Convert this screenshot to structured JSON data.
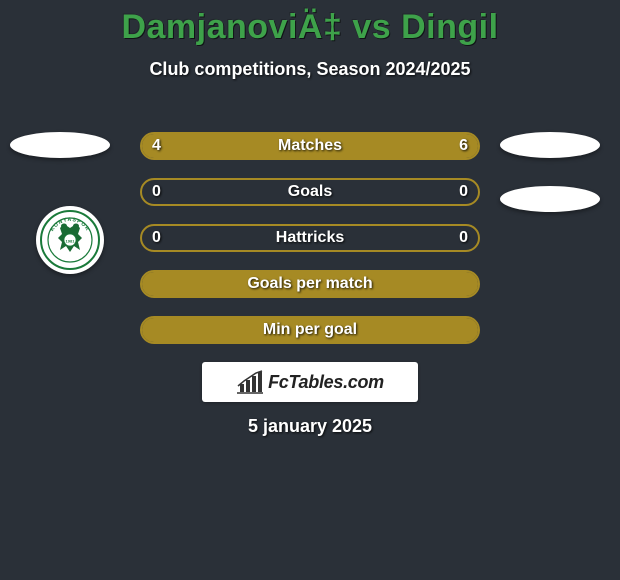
{
  "title": "DamjanoviÄ‡ vs Dingil",
  "subtitle": "Club competitions, Season 2024/2025",
  "bars": [
    {
      "label": "Matches",
      "left": "4",
      "right": "6",
      "left_w": 40,
      "right_w": 60,
      "row_type": "split"
    },
    {
      "label": "Goals",
      "left": "0",
      "right": "0",
      "row_type": "outline"
    },
    {
      "label": "Hattricks",
      "left": "0",
      "right": "0",
      "row_type": "outline"
    },
    {
      "label": "Goals per match",
      "left": "",
      "right": "",
      "row_type": "full"
    },
    {
      "label": "Min per goal",
      "left": "",
      "right": "",
      "row_type": "full"
    }
  ],
  "styles": {
    "bar_border_color": "#a68a24",
    "fill_color": "#a68a24",
    "fill_color_light": "#a68a24",
    "background": "#2a3038"
  },
  "attrib_brand": "FcTables.com",
  "date": "5 january 2025",
  "badge_label": "KONYASPOR",
  "badge_year": "1981"
}
